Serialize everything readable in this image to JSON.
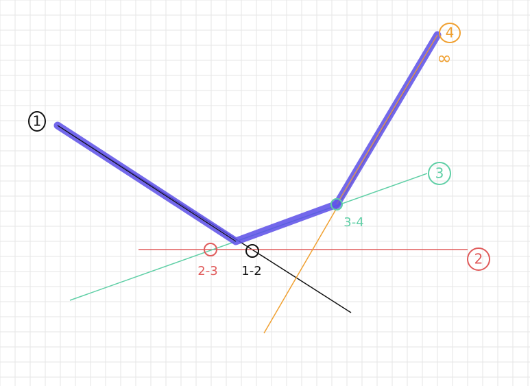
{
  "labels": {
    "line1": "1",
    "line2": "2",
    "line3": "3",
    "line4": "4",
    "infinity": "∞",
    "int12": "1-2",
    "int23": "2-3",
    "int34": "3-4"
  },
  "colors": {
    "grid": "#e6e6e6",
    "line1": "#111111",
    "line2": "#e05a5a",
    "line3": "#5fcfa6",
    "line4": "#f0a030",
    "envelope": "#5a4ee8"
  }
}
